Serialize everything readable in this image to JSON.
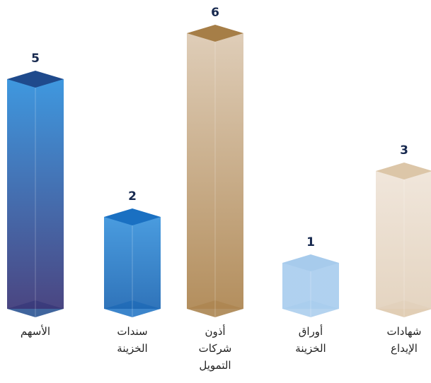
{
  "chart_data": {
    "type": "bar3d",
    "categories": [
      "الأسهم",
      "سندات الخزينة",
      "أذون شركات التمويل",
      "أوراق الخزينة",
      "شهادات الإيداع"
    ],
    "values": [
      5,
      2,
      6,
      1,
      3
    ],
    "colors": [
      "#2e8fdc",
      "#3a93dc",
      "#dcc9b2",
      "#a9cdee",
      "#efe4d8"
    ],
    "colors_end": [
      "#3b3677",
      "#1e68b4",
      "#ad8550",
      "#a9cdee",
      "#e2d1bc"
    ],
    "top_colors": [
      "#1f4a8c",
      "#1a70c2",
      "#a67e47",
      "#a7cbec",
      "#dcc6a8"
    ]
  }
}
